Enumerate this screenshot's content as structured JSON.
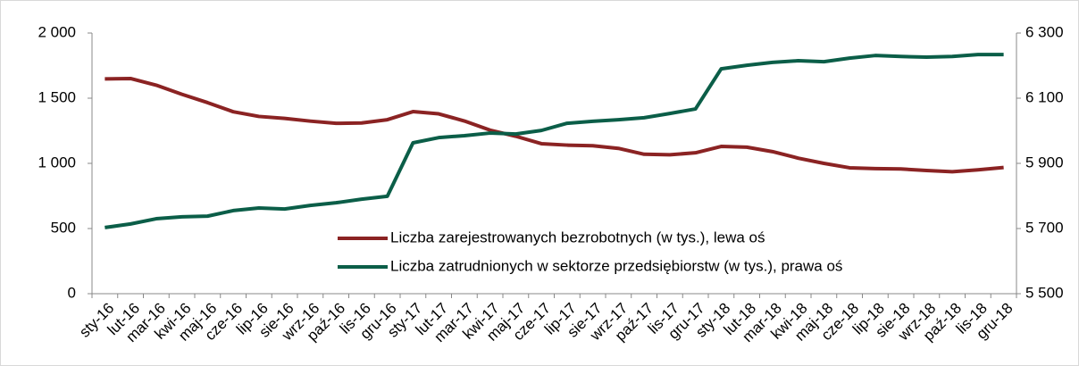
{
  "chart_data": {
    "type": "line",
    "categories": [
      "sty-16",
      "lut-16",
      "mar-16",
      "kwi-16",
      "maj-16",
      "cze-16",
      "lip-16",
      "sie-16",
      "wrz-16",
      "paź-16",
      "lis-16",
      "gru-16",
      "sty-17",
      "lut-17",
      "mar-17",
      "kwi-17",
      "maj-17",
      "cze-17",
      "lip-17",
      "sie-17",
      "wrz-17",
      "paź-17",
      "lis-17",
      "gru-17",
      "sty-18",
      "lut-18",
      "mar-18",
      "kwi-18",
      "maj-18",
      "cze-18",
      "lip-18",
      "sie-18",
      "wrz-18",
      "paź-18",
      "lis-18",
      "gru-18"
    ],
    "series": [
      {
        "name": "Liczba zarejestrowanych bezrobotnych (w tys.), lewa oś",
        "color": "#8b2323",
        "axis": "y",
        "values": [
          1648,
          1651,
          1600,
          1530,
          1466,
          1396,
          1360,
          1345,
          1324,
          1307,
          1310,
          1335,
          1397,
          1380,
          1325,
          1255,
          1208,
          1151,
          1140,
          1135,
          1115,
          1070,
          1066,
          1081,
          1130,
          1124,
          1090,
          1040,
          1000,
          966,
          960,
          957,
          945,
          936,
          950,
          968
        ]
      },
      {
        "name": "Liczba zatrudnionych w sektorze przedsiębiorstw (w tys.), prawa oś",
        "color": "#0b5e48",
        "axis": "y2",
        "values": [
          5703,
          5714,
          5730,
          5736,
          5738,
          5755,
          5763,
          5760,
          5771,
          5779,
          5790,
          5799,
          5963,
          5979,
          5985,
          5993,
          5990,
          6001,
          6023,
          6029,
          6034,
          6040,
          6053,
          6067,
          6190,
          6201,
          6210,
          6215,
          6212,
          6223,
          6231,
          6228,
          6226,
          6228,
          6234,
          6234
        ]
      }
    ],
    "ylim": [
      0,
      2000
    ],
    "yticks": [
      0,
      500,
      {
        "value": 1000,
        "label": "1 000"
      },
      {
        "value": 1500,
        "label": "1 500"
      },
      {
        "value": 2000,
        "label": "2 000"
      }
    ],
    "y2lim": [
      5500,
      6300
    ],
    "y2ticks": [
      {
        "value": 5500,
        "label": "5 500"
      },
      {
        "value": 5700,
        "label": "5 700"
      },
      {
        "value": 5900,
        "label": "5 900"
      },
      {
        "value": 6100,
        "label": "6 100"
      },
      {
        "value": 6300,
        "label": "6 300"
      }
    ],
    "grid": false
  }
}
